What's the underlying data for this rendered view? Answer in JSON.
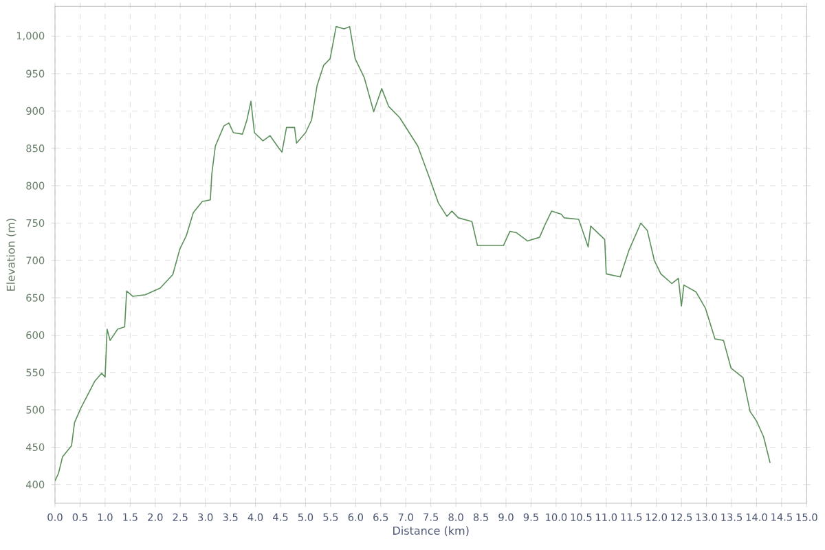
{
  "chart_data": {
    "type": "line",
    "xlabel": "Distance (km)",
    "ylabel": "Elevation (m)",
    "xlim": [
      0,
      15
    ],
    "ylim": [
      375,
      1040
    ],
    "xticks": [
      {
        "value": 0,
        "label": "0.0"
      },
      {
        "value": 0.5,
        "label": "0.5"
      },
      {
        "value": 1,
        "label": "1.0"
      },
      {
        "value": 1.5,
        "label": "1.5"
      },
      {
        "value": 2,
        "label": "2.0"
      },
      {
        "value": 2.5,
        "label": "2.5"
      },
      {
        "value": 3,
        "label": "3.0"
      },
      {
        "value": 3.5,
        "label": "3.5"
      },
      {
        "value": 4,
        "label": "4.0"
      },
      {
        "value": 4.5,
        "label": "4.5"
      },
      {
        "value": 5,
        "label": "5.0"
      },
      {
        "value": 5.5,
        "label": "5.5"
      },
      {
        "value": 6,
        "label": "6.0"
      },
      {
        "value": 6.5,
        "label": "6.5"
      },
      {
        "value": 7,
        "label": "7.0"
      },
      {
        "value": 7.5,
        "label": "7.5"
      },
      {
        "value": 8,
        "label": "8.0"
      },
      {
        "value": 8.5,
        "label": "8.5"
      },
      {
        "value": 9,
        "label": "9.0"
      },
      {
        "value": 9.5,
        "label": "9.5"
      },
      {
        "value": 10,
        "label": "10.0"
      },
      {
        "value": 10.5,
        "label": "10.5"
      },
      {
        "value": 11,
        "label": "11.0"
      },
      {
        "value": 11.5,
        "label": "11.5"
      },
      {
        "value": 12,
        "label": "12.0"
      },
      {
        "value": 12.5,
        "label": "12.5"
      },
      {
        "value": 13,
        "label": "13.0"
      },
      {
        "value": 13.5,
        "label": "13.5"
      },
      {
        "value": 14,
        "label": "14.0"
      },
      {
        "value": 14.5,
        "label": "14.5"
      },
      {
        "value": 15,
        "label": "15.0"
      }
    ],
    "yticks": [
      400,
      450,
      500,
      550,
      600,
      650,
      700,
      750,
      800,
      850,
      900,
      950,
      {
        "value": 1000,
        "label": "1,000"
      }
    ],
    "grid": true,
    "marker": "none",
    "line_style": "solid",
    "series": [
      {
        "color": "#5b8f5b",
        "x": [
          0,
          0.07,
          0.15,
          0.33,
          0.39,
          0.52,
          0.66,
          0.79,
          0.93,
          1.0,
          1.04,
          1.1,
          1.25,
          1.39,
          1.43,
          1.55,
          1.8,
          2.1,
          2.35,
          2.49,
          2.62,
          2.76,
          2.94,
          3.1,
          3.13,
          3.2,
          3.37,
          3.47,
          3.56,
          3.74,
          3.83,
          3.91,
          3.98,
          4.15,
          4.29,
          4.46,
          4.53,
          4.62,
          4.78,
          4.82,
          5.0,
          5.12,
          5.23,
          5.36,
          5.49,
          5.61,
          5.77,
          5.88,
          5.99,
          6.17,
          6.36,
          6.52,
          6.66,
          6.88,
          7.05,
          7.24,
          7.47,
          7.65,
          7.82,
          7.92,
          8.05,
          8.32,
          8.43,
          8.95,
          9.08,
          9.21,
          9.43,
          9.67,
          9.78,
          9.91,
          10.1,
          10.16,
          10.45,
          10.64,
          10.69,
          10.97,
          11.0,
          11.28,
          11.45,
          11.69,
          11.82,
          11.96,
          12.09,
          12.31,
          12.44,
          12.5,
          12.55,
          12.79,
          12.98,
          13.17,
          13.34,
          13.49,
          13.73,
          13.87,
          14.0,
          14.14,
          14.27
        ],
        "values": [
          405,
          415,
          437,
          452,
          483,
          503,
          521,
          538,
          549,
          544,
          608,
          593,
          608,
          611,
          659,
          652,
          654,
          663,
          681,
          715,
          733,
          764,
          779,
          781,
          816,
          853,
          880,
          884,
          871,
          869,
          888,
          913,
          871,
          860,
          867,
          851,
          845,
          878,
          878,
          857,
          871,
          888,
          934,
          961,
          970,
          1013,
          1010,
          1013,
          970,
          945,
          899,
          930,
          906,
          891,
          873,
          853,
          811,
          777,
          759,
          766,
          757,
          752,
          720,
          720,
          739,
          737,
          726,
          731,
          748,
          766,
          762,
          757,
          755,
          718,
          746,
          728,
          682,
          678,
          713,
          750,
          740,
          700,
          682,
          669,
          676,
          639,
          667,
          658,
          636,
          595,
          593,
          556,
          543,
          498,
          485,
          464,
          429
        ]
      }
    ]
  }
}
